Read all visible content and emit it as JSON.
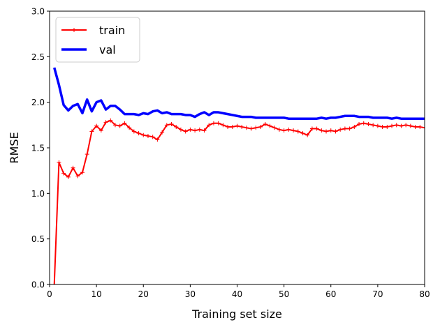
{
  "chart_data": {
    "type": "line",
    "xlabel": "Training set size",
    "ylabel": "RMSE",
    "xlim": [
      0,
      80
    ],
    "ylim": [
      0,
      3
    ],
    "xticks": [
      "0",
      "10",
      "20",
      "30",
      "40",
      "50",
      "60",
      "70",
      "80"
    ],
    "yticks": [
      "0.0",
      "0.5",
      "1.0",
      "1.5",
      "2.0",
      "2.5",
      "3.0"
    ],
    "legend_position": "top-left",
    "grid": false,
    "series": [
      {
        "name": "train",
        "color": "#ff0000",
        "marker": "plus",
        "x": [
          1,
          2,
          3,
          4,
          5,
          6,
          7,
          8,
          9,
          10,
          11,
          12,
          13,
          14,
          15,
          16,
          17,
          18,
          19,
          20,
          21,
          22,
          23,
          24,
          25,
          26,
          27,
          28,
          29,
          30,
          31,
          32,
          33,
          34,
          35,
          36,
          37,
          38,
          39,
          40,
          41,
          42,
          43,
          44,
          45,
          46,
          47,
          48,
          49,
          50,
          51,
          52,
          53,
          54,
          55,
          56,
          57,
          58,
          59,
          60,
          61,
          62,
          63,
          64,
          65,
          66,
          67,
          68,
          69,
          70,
          71,
          72,
          73,
          74,
          75,
          76,
          77,
          78,
          79,
          80
        ],
        "values": [
          0.0,
          1.34,
          1.22,
          1.18,
          1.28,
          1.19,
          1.23,
          1.43,
          1.68,
          1.74,
          1.69,
          1.78,
          1.8,
          1.75,
          1.74,
          1.77,
          1.72,
          1.68,
          1.66,
          1.64,
          1.63,
          1.62,
          1.59,
          1.67,
          1.75,
          1.76,
          1.73,
          1.7,
          1.68,
          1.7,
          1.69,
          1.7,
          1.69,
          1.75,
          1.77,
          1.77,
          1.75,
          1.73,
          1.73,
          1.74,
          1.73,
          1.72,
          1.71,
          1.72,
          1.73,
          1.76,
          1.74,
          1.72,
          1.7,
          1.69,
          1.7,
          1.69,
          1.68,
          1.66,
          1.64,
          1.71,
          1.71,
          1.69,
          1.68,
          1.69,
          1.68,
          1.7,
          1.71,
          1.71,
          1.73,
          1.76,
          1.77,
          1.76,
          1.75,
          1.74,
          1.73,
          1.73,
          1.74,
          1.75,
          1.74,
          1.75,
          1.74,
          1.73,
          1.73,
          1.72
        ]
      },
      {
        "name": "val",
        "color": "#0000ff",
        "marker": "none",
        "x": [
          1,
          2,
          3,
          4,
          5,
          6,
          7,
          8,
          9,
          10,
          11,
          12,
          13,
          14,
          15,
          16,
          17,
          18,
          19,
          20,
          21,
          22,
          23,
          24,
          25,
          26,
          27,
          28,
          29,
          30,
          31,
          32,
          33,
          34,
          35,
          36,
          37,
          38,
          39,
          40,
          41,
          42,
          43,
          44,
          45,
          46,
          47,
          48,
          49,
          50,
          51,
          52,
          53,
          54,
          55,
          56,
          57,
          58,
          59,
          60,
          61,
          62,
          63,
          64,
          65,
          66,
          67,
          68,
          69,
          70,
          71,
          72,
          73,
          74,
          75,
          76,
          77,
          78,
          79,
          80
        ],
        "values": [
          2.38,
          2.19,
          1.97,
          1.91,
          1.96,
          1.98,
          1.88,
          2.03,
          1.9,
          2.0,
          2.02,
          1.92,
          1.96,
          1.96,
          1.92,
          1.87,
          1.87,
          1.87,
          1.86,
          1.88,
          1.87,
          1.9,
          1.91,
          1.88,
          1.89,
          1.87,
          1.87,
          1.87,
          1.86,
          1.86,
          1.84,
          1.87,
          1.89,
          1.86,
          1.89,
          1.89,
          1.88,
          1.87,
          1.86,
          1.85,
          1.84,
          1.84,
          1.84,
          1.83,
          1.83,
          1.83,
          1.83,
          1.83,
          1.83,
          1.83,
          1.82,
          1.82,
          1.82,
          1.82,
          1.82,
          1.82,
          1.82,
          1.83,
          1.82,
          1.83,
          1.83,
          1.84,
          1.85,
          1.85,
          1.85,
          1.84,
          1.84,
          1.84,
          1.83,
          1.83,
          1.83,
          1.83,
          1.82,
          1.83,
          1.82,
          1.82,
          1.82,
          1.82,
          1.82,
          1.82
        ]
      }
    ]
  }
}
